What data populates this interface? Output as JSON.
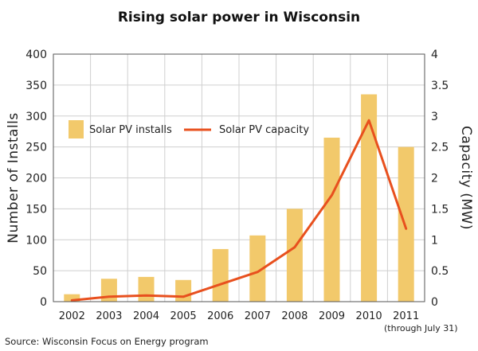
{
  "chart_data": {
    "type": "bar+line",
    "title": "Rising solar power in Wisconsin",
    "categories": [
      "2002",
      "2003",
      "2004",
      "2005",
      "2006",
      "2007",
      "2008",
      "2009",
      "2010",
      "2011"
    ],
    "series": [
      {
        "name": "Solar PV installs",
        "type": "bar",
        "axis": "left",
        "values": [
          12,
          37,
          40,
          35,
          85,
          107,
          150,
          265,
          335,
          250
        ],
        "color": "#f2c96b"
      },
      {
        "name": "Solar PV capacity",
        "type": "line",
        "axis": "right",
        "values": [
          0.02,
          0.08,
          0.1,
          0.08,
          0.28,
          0.48,
          0.88,
          1.72,
          2.93,
          1.18
        ],
        "color": "#e8501e"
      }
    ],
    "ylabel_left": "Number of Installs",
    "ylabel_right": "Capacity (MW)",
    "ylim_left": [
      0,
      400
    ],
    "ylim_right": [
      0,
      4
    ],
    "yticks_left": [
      "0",
      "50",
      "100",
      "150",
      "200",
      "250",
      "300",
      "350",
      "400"
    ],
    "yticks_right": [
      "0",
      "0.5",
      "1",
      "1.5",
      "2",
      "2.5",
      "3",
      "3.5",
      "4"
    ],
    "grid": true,
    "legend_position": "top-left",
    "annotation": "(through July 31)",
    "source": "Source: Wisconsin Focus on Energy program"
  }
}
